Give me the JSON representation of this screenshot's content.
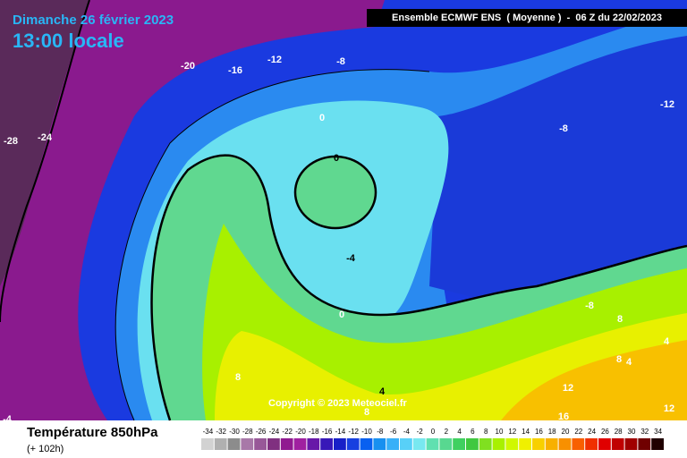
{
  "header": {
    "date": "Dimanche 26 février 2023",
    "time": "13:00 locale",
    "model": "Ensemble ECMWF ENS  ( Moyenne )  -  06 Z du 22/02/2023"
  },
  "copyright": "Copyright © 2023 Meteociel.fr",
  "footer": {
    "title": "Température 850hPa",
    "lead": "(+ 102h)"
  },
  "contour_labels": [
    -20,
    -16,
    -12,
    -8,
    -28,
    -24,
    0,
    0,
    -12,
    -8,
    -4,
    0,
    -8,
    8,
    8,
    4,
    8,
    12,
    16,
    12,
    4,
    8,
    4,
    -4
  ],
  "legend": {
    "values": [
      -34,
      -32,
      -30,
      -28,
      -26,
      -24,
      -22,
      -20,
      -18,
      -16,
      -14,
      -12,
      -10,
      -8,
      -6,
      -4,
      -2,
      0,
      2,
      4,
      6,
      8,
      10,
      12,
      14,
      16,
      18,
      20,
      22,
      24,
      26,
      28,
      30,
      32,
      34
    ],
    "colors": [
      "#d2d2d2",
      "#b0b0b0",
      "#8c8c8c",
      "#a878a8",
      "#985898",
      "#803080",
      "#901a90",
      "#a020a0",
      "#6818a8",
      "#3818b8",
      "#1820c8",
      "#1840e0",
      "#0860f0",
      "#1890f0",
      "#38b0f8",
      "#58d0f8",
      "#78e8f0",
      "#60e0b0",
      "#58d890",
      "#40d060",
      "#40c840",
      "#80e020",
      "#a8f000",
      "#d0f800",
      "#f0f000",
      "#f8d000",
      "#f8b000",
      "#f89000",
      "#f86000",
      "#f03000",
      "#e00000",
      "#c00000",
      "#a00000",
      "#700000",
      "#200000"
    ]
  }
}
